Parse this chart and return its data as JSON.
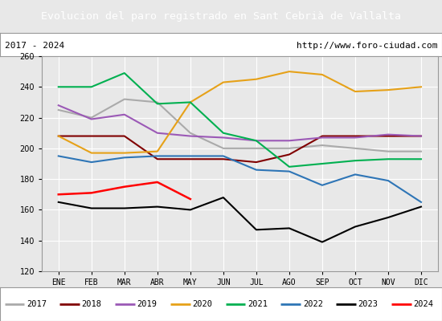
{
  "title": "Evolucion del paro registrado en Sant Cebrià de Vallalta",
  "title_bg": "#4472c4",
  "subtitle_left": "2017 - 2024",
  "subtitle_right": "http://www.foro-ciudad.com",
  "months": [
    "ENE",
    "FEB",
    "MAR",
    "ABR",
    "MAY",
    "JUN",
    "JUL",
    "AGO",
    "SEP",
    "OCT",
    "NOV",
    "DIC"
  ],
  "ylim": [
    120,
    260
  ],
  "yticks": [
    120,
    140,
    160,
    180,
    200,
    220,
    240,
    260
  ],
  "series": {
    "2017": {
      "color": "#aaaaaa",
      "values": [
        225,
        220,
        232,
        230,
        210,
        200,
        200,
        200,
        202,
        200,
        198,
        198
      ]
    },
    "2018": {
      "color": "#800000",
      "values": [
        208,
        208,
        208,
        193,
        193,
        193,
        191,
        196,
        208,
        208,
        208,
        208
      ]
    },
    "2019": {
      "color": "#9b59b6",
      "values": [
        228,
        219,
        222,
        210,
        208,
        207,
        205,
        205,
        207,
        207,
        209,
        208
      ]
    },
    "2020": {
      "color": "#e6a118",
      "values": [
        208,
        197,
        197,
        198,
        230,
        243,
        245,
        250,
        248,
        237,
        238,
        240
      ]
    },
    "2021": {
      "color": "#00b050",
      "values": [
        240,
        240,
        249,
        229,
        230,
        210,
        205,
        188,
        190,
        192,
        193,
        193
      ]
    },
    "2022": {
      "color": "#2e75b6",
      "values": [
        195,
        191,
        194,
        195,
        195,
        195,
        186,
        185,
        176,
        183,
        179,
        165
      ]
    },
    "2023": {
      "color": "#000000",
      "values": [
        165,
        161,
        161,
        162,
        160,
        168,
        147,
        148,
        139,
        149,
        155,
        162
      ]
    },
    "2024": {
      "color": "#ff0000",
      "values": [
        170,
        171,
        175,
        178,
        167,
        null,
        null,
        null,
        null,
        null,
        null,
        null
      ]
    }
  },
  "legend_order": [
    "2017",
    "2018",
    "2019",
    "2020",
    "2021",
    "2022",
    "2023",
    "2024"
  ],
  "background_color": "#e8e8e8",
  "plot_bg": "#e8e8e8",
  "grid_color": "#ffffff"
}
